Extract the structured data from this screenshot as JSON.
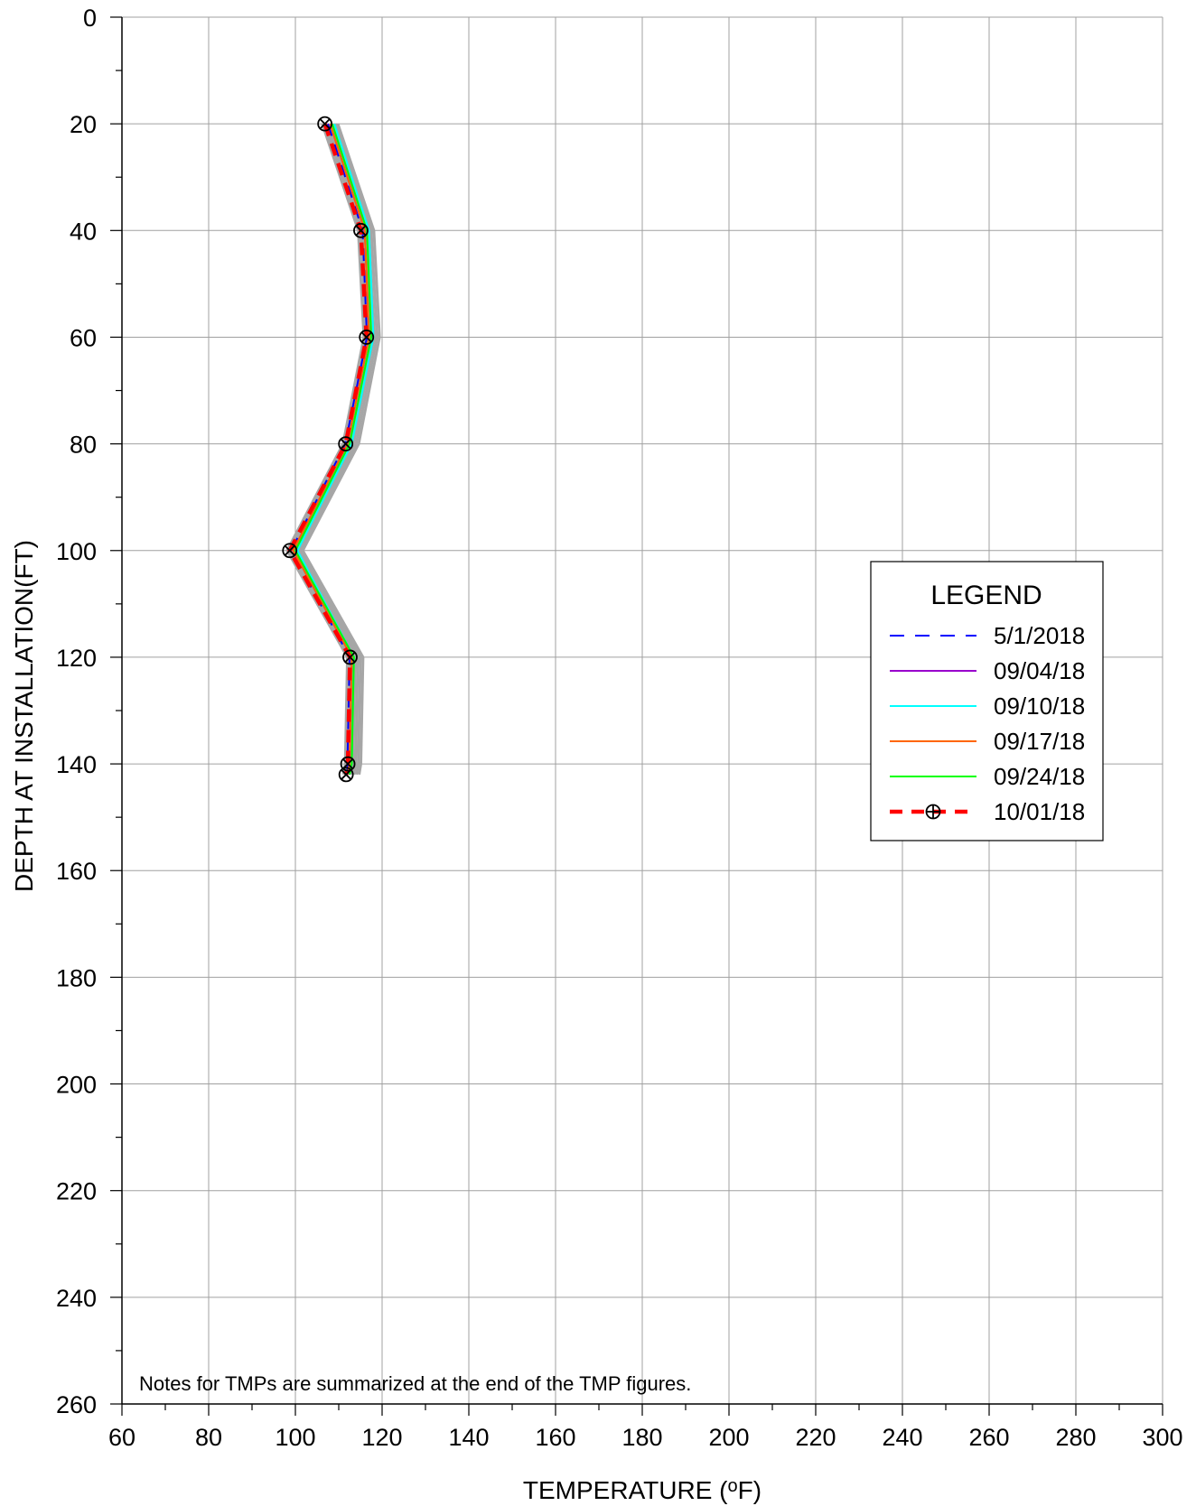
{
  "chart_data": {
    "type": "line",
    "xlabel": "TEMPERATURE (",
    "xlabel_unit_sup": "o",
    "xlabel_unit": "F)",
    "ylabel": "DEPTH AT INSTALLATION(FT)",
    "xlim": [
      60,
      300
    ],
    "ylim": [
      0,
      260
    ],
    "y_inverted": true,
    "x_ticks": [
      "60",
      "80",
      "100",
      "120",
      "140",
      "160",
      "180",
      "200",
      "220",
      "240",
      "260",
      "280",
      "300"
    ],
    "y_ticks": [
      "0",
      "20",
      "40",
      "60",
      "80",
      "100",
      "120",
      "140",
      "160",
      "180",
      "200",
      "220",
      "240",
      "260"
    ],
    "grid": true,
    "legend_title": "LEGEND",
    "legend_position": "right",
    "note": "Notes for TMPs are summarized at the end of the TMP figures.",
    "background_series_color": "#a6a6a6",
    "series": [
      {
        "name": "5/1/2018",
        "color": "#0000ff",
        "dash": "dashed",
        "x": [
          107.5,
          115.5,
          116.5,
          111.5,
          99,
          112.5,
          112,
          112
        ],
        "y": [
          20,
          40,
          60,
          80,
          100,
          120,
          140,
          142
        ]
      },
      {
        "name": "09/04/18",
        "color": "#9900cc",
        "dash": "solid",
        "x": [
          108,
          116,
          117,
          112,
          99.5,
          113,
          112.5,
          112
        ],
        "y": [
          20,
          40,
          60,
          80,
          100,
          120,
          140,
          142
        ]
      },
      {
        "name": "09/10/18",
        "color": "#00ffff",
        "dash": "solid",
        "x": [
          109,
          117,
          118,
          113,
          100.5,
          113.5,
          113,
          112.5
        ],
        "y": [
          20,
          40,
          60,
          80,
          100,
          120,
          140,
          142
        ]
      },
      {
        "name": "09/17/18",
        "color": "#ff6600",
        "dash": "solid",
        "x": [
          108,
          116,
          117,
          112,
          99.5,
          113,
          112.5,
          112
        ],
        "y": [
          20,
          40,
          60,
          80,
          100,
          120,
          140,
          142
        ]
      },
      {
        "name": "09/24/18",
        "color": "#00ff00",
        "dash": "solid",
        "x": [
          108.5,
          116.5,
          117.5,
          112.5,
          100,
          113.5,
          113,
          112.5
        ],
        "y": [
          20,
          40,
          60,
          80,
          100,
          120,
          140,
          142
        ]
      },
      {
        "name": "10/01/18",
        "color": "#ff0000",
        "dash": "bold-dashed",
        "marker": "circle-x",
        "x": [
          106.8,
          115.1,
          116.4,
          111.6,
          98.7,
          112.6,
          112.1,
          111.7
        ],
        "y": [
          20,
          40,
          60,
          80,
          100,
          120,
          140,
          142
        ]
      }
    ]
  }
}
